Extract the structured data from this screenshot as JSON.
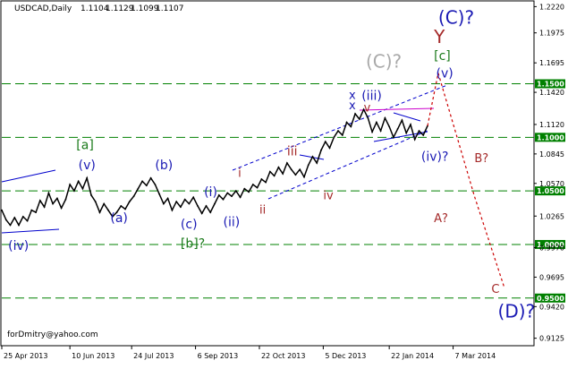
{
  "header": {
    "symbol": "USDCAD,Daily",
    "open": "1.1104",
    "high": "1.1129",
    "low": "1.1099",
    "close": "1.1107"
  },
  "footer": {
    "credit": "forDmitry@yahoo.com"
  },
  "colors": {
    "background": "#ffffff",
    "price_line": "#000000",
    "level_lines": "#008000",
    "badge": "#008000",
    "channel": "#0000cc",
    "blue_labels": "#1a1ab4",
    "green_labels": "#1a7a1a",
    "red_labels": "#a52a2a",
    "gray_labels": "#a9a9a9",
    "forecast_path": "#cc0000",
    "triangle_top": "#cc00cc"
  },
  "chart_data": {
    "type": "line",
    "title": "USDCAD,Daily",
    "xlabel": "",
    "ylabel": "",
    "ylim": [
      0.9055,
      1.2265
    ],
    "x_ticks": [
      "25 Apr 2013",
      "10 Jun 2013",
      "24 Jul 2013",
      "6 Sep 2013",
      "22 Oct 2013",
      "5 Dec 2013",
      "22 Jan 2014",
      "7 Mar 2014"
    ],
    "y_ticks": [
      "1.2220",
      "1.1975",
      "1.1695",
      "1.1420",
      "1.1120",
      "1.0845",
      "1.0570",
      "1.0265",
      "0.9970",
      "0.9695",
      "0.9420",
      "0.9125"
    ],
    "level_lines": [
      "1.1500",
      "1.1000",
      "1.0500",
      "1.0000",
      "0.9500"
    ],
    "series": [
      {
        "values": [
          [
            0,
            1.032
          ],
          [
            2,
            1.023
          ],
          [
            4,
            1.018
          ],
          [
            6,
            1.025
          ],
          [
            8,
            1.018
          ],
          [
            10,
            1.026
          ],
          [
            12,
            1.022
          ],
          [
            14,
            1.032
          ],
          [
            16,
            1.03
          ],
          [
            18,
            1.041
          ],
          [
            20,
            1.035
          ],
          [
            22,
            1.048
          ],
          [
            24,
            1.038
          ],
          [
            26,
            1.043
          ],
          [
            28,
            1.034
          ],
          [
            30,
            1.042
          ],
          [
            32,
            1.056
          ],
          [
            34,
            1.05
          ],
          [
            36,
            1.059
          ],
          [
            38,
            1.052
          ],
          [
            40,
            1.062
          ],
          [
            42,
            1.046
          ],
          [
            44,
            1.04
          ],
          [
            46,
            1.03
          ],
          [
            48,
            1.038
          ],
          [
            50,
            1.032
          ],
          [
            52,
            1.026
          ],
          [
            54,
            1.03
          ],
          [
            56,
            1.036
          ],
          [
            58,
            1.033
          ],
          [
            60,
            1.04
          ],
          [
            62,
            1.045
          ],
          [
            64,
            1.052
          ],
          [
            66,
            1.059
          ],
          [
            68,
            1.055
          ],
          [
            70,
            1.062
          ],
          [
            72,
            1.056
          ],
          [
            74,
            1.047
          ],
          [
            76,
            1.038
          ],
          [
            78,
            1.043
          ],
          [
            80,
            1.032
          ],
          [
            82,
            1.04
          ],
          [
            84,
            1.035
          ],
          [
            86,
            1.042
          ],
          [
            88,
            1.038
          ],
          [
            90,
            1.044
          ],
          [
            92,
            1.036
          ],
          [
            94,
            1.029
          ],
          [
            96,
            1.036
          ],
          [
            98,
            1.03
          ],
          [
            100,
            1.038
          ],
          [
            102,
            1.046
          ],
          [
            104,
            1.042
          ],
          [
            106,
            1.048
          ],
          [
            108,
            1.045
          ],
          [
            110,
            1.05
          ],
          [
            112,
            1.044
          ],
          [
            114,
            1.052
          ],
          [
            116,
            1.049
          ],
          [
            118,
            1.056
          ],
          [
            120,
            1.053
          ],
          [
            122,
            1.061
          ],
          [
            124,
            1.058
          ],
          [
            126,
            1.068
          ],
          [
            128,
            1.064
          ],
          [
            130,
            1.072
          ],
          [
            132,
            1.066
          ],
          [
            134,
            1.076
          ],
          [
            136,
            1.07
          ],
          [
            138,
            1.065
          ],
          [
            140,
            1.07
          ],
          [
            142,
            1.063
          ],
          [
            144,
            1.074
          ],
          [
            146,
            1.082
          ],
          [
            148,
            1.076
          ],
          [
            150,
            1.088
          ],
          [
            152,
            1.096
          ],
          [
            154,
            1.09
          ],
          [
            156,
            1.1
          ],
          [
            158,
            1.106
          ],
          [
            160,
            1.102
          ],
          [
            162,
            1.114
          ],
          [
            164,
            1.11
          ],
          [
            166,
            1.122
          ],
          [
            168,
            1.117
          ],
          [
            170,
            1.126
          ],
          [
            172,
            1.118
          ],
          [
            174,
            1.105
          ],
          [
            176,
            1.114
          ],
          [
            178,
            1.106
          ],
          [
            180,
            1.118
          ],
          [
            182,
            1.11
          ],
          [
            184,
            1.1
          ],
          [
            186,
            1.108
          ],
          [
            188,
            1.116
          ],
          [
            190,
            1.104
          ],
          [
            192,
            1.112
          ],
          [
            194,
            1.098
          ],
          [
            196,
            1.106
          ],
          [
            198,
            1.102
          ],
          [
            200,
            1.1107
          ]
        ]
      }
    ],
    "forecast_path": [
      [
        200,
        1.1107
      ],
      [
        205,
        1.16
      ],
      [
        222,
        1.045
      ],
      [
        236,
        0.96
      ]
    ],
    "wave_labels": [
      {
        "text": "(iv)",
        "color": "blue",
        "x": 3,
        "y": 0.995
      },
      {
        "text": "(v)",
        "color": "blue",
        "x": 36,
        "y": 1.07
      },
      {
        "text": "[a]",
        "color": "green",
        "x": 35,
        "y": 1.089
      },
      {
        "text": "(a)",
        "color": "blue",
        "x": 51,
        "y": 1.021
      },
      {
        "text": "(b)",
        "color": "blue",
        "x": 72,
        "y": 1.07
      },
      {
        "text": "(c)",
        "color": "blue",
        "x": 84,
        "y": 1.015
      },
      {
        "text": "[b]?",
        "color": "green",
        "x": 84,
        "y": 0.997
      },
      {
        "text": "(i)",
        "color": "blue",
        "x": 95,
        "y": 1.045
      },
      {
        "text": "(ii)",
        "color": "blue",
        "x": 104,
        "y": 1.017
      },
      {
        "text": "i",
        "color": "red",
        "x": 111,
        "y": 1.063
      },
      {
        "text": "ii",
        "color": "red",
        "x": 121,
        "y": 1.029
      },
      {
        "text": "iii",
        "color": "red",
        "x": 134,
        "y": 1.083
      },
      {
        "text": "iv",
        "color": "red",
        "x": 151,
        "y": 1.042
      },
      {
        "text": "x",
        "color": "blue",
        "x": 163,
        "y": 1.136
      },
      {
        "text": "x",
        "color": "blue",
        "x": 163,
        "y": 1.126
      },
      {
        "text": "(iii)",
        "color": "blue",
        "x": 169,
        "y": 1.135
      },
      {
        "text": "v",
        "color": "red",
        "x": 170,
        "y": 1.124
      },
      {
        "text": "(C)?",
        "color": "gray",
        "x": 171,
        "y": 1.165
      },
      {
        "text": "(iv)?",
        "color": "blue",
        "x": 197,
        "y": 1.078
      },
      {
        "text": "[c]",
        "color": "green",
        "x": 203,
        "y": 1.172
      },
      {
        "text": "Y",
        "color": "red",
        "x": 203,
        "y": 1.188
      },
      {
        "text": "(C)?",
        "color": "blue",
        "x": 205,
        "y": 1.206
      },
      {
        "text": "(v)",
        "color": "blue",
        "x": 204,
        "y": 1.156
      },
      {
        "text": "B?",
        "color": "red",
        "x": 222,
        "y": 1.077
      },
      {
        "text": "A?",
        "color": "red",
        "x": 203,
        "y": 1.021
      },
      {
        "text": "C",
        "color": "red",
        "x": 230,
        "y": 0.955
      },
      {
        "text": "(D)?",
        "color": "blue",
        "x": 233,
        "y": 0.932
      }
    ]
  }
}
